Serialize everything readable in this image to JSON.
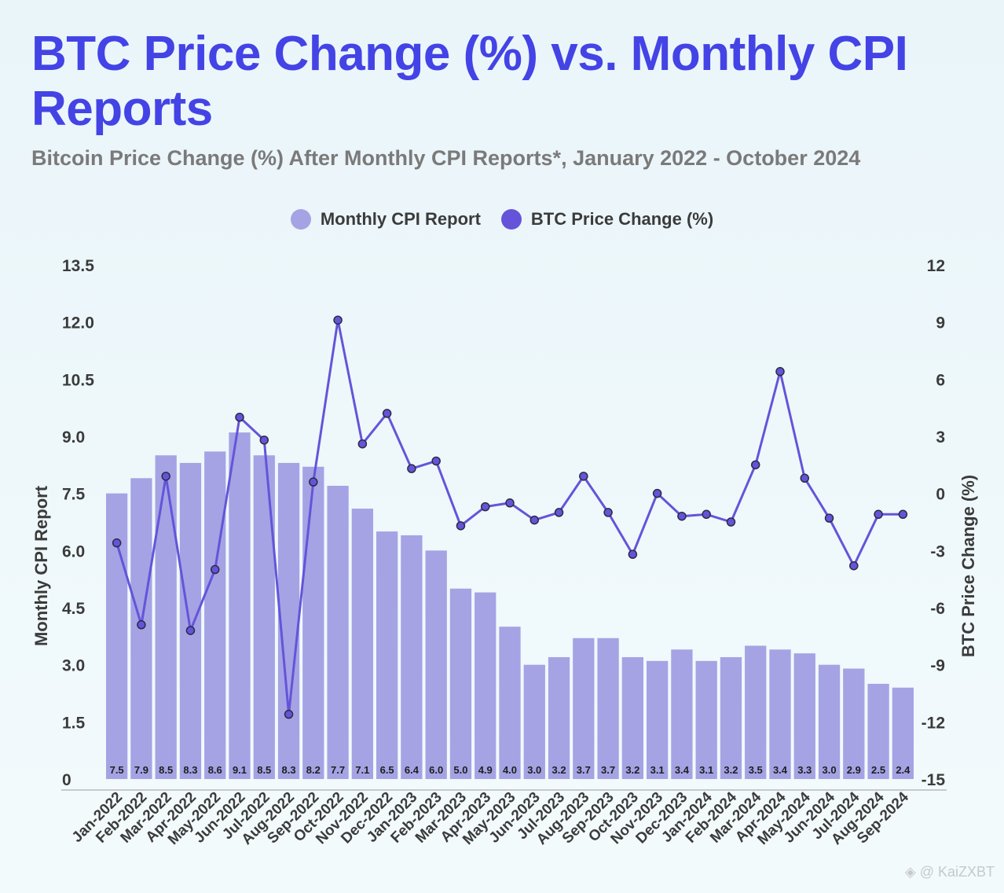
{
  "header": {
    "title": "BTC Price Change (%) vs. Monthly CPI Reports",
    "subtitle": "Bitcoin Price Change (%) After Monthly CPI Reports*, January 2022 - October 2024"
  },
  "colors": {
    "title": "#4343e6",
    "bar": "#a5a3e4",
    "line": "#6554d9",
    "point_stroke": "#2b2b44",
    "axis_text": "#3b3b3b"
  },
  "watermark": "@ KaiZXBT",
  "chart_data": {
    "type": "bar+line",
    "title": "BTC Price Change (%) vs. Monthly CPI Reports",
    "subtitle": "Bitcoin Price Change (%) After Monthly CPI Reports*, January 2022 - October 2024",
    "legend": {
      "position": "top-center",
      "entries": [
        "Monthly CPI Report",
        "BTC Price Change (%)"
      ]
    },
    "categories": [
      "Jan-2022",
      "Feb-2022",
      "Mar-2022",
      "Apr-2022",
      "May-2022",
      "Jun-2022",
      "Jul-2022",
      "Aug-2022",
      "Sep-2022",
      "Oct-2022",
      "Nov-2022",
      "Dec-2022",
      "Jan-2023",
      "Feb-2023",
      "Mar-2023",
      "Apr-2023",
      "May-2023",
      "Jun-2023",
      "Jul-2023",
      "Aug-2023",
      "Sep-2023",
      "Oct-2023",
      "Nov-2023",
      "Dec-2023",
      "Jan-2024",
      "Feb-2024",
      "Mar-2024",
      "Apr-2024",
      "May-2024",
      "Jun-2024",
      "Jul-2024",
      "Aug-2024",
      "Sep-2024"
    ],
    "series": [
      {
        "name": "Monthly CPI Report",
        "type": "bar",
        "axis": "left",
        "values": [
          7.5,
          7.9,
          8.5,
          8.3,
          8.6,
          9.1,
          8.5,
          8.3,
          8.2,
          7.7,
          7.1,
          6.5,
          6.4,
          6.0,
          5.0,
          4.9,
          4.0,
          3.0,
          3.2,
          3.7,
          3.7,
          3.2,
          3.1,
          3.4,
          3.1,
          3.2,
          3.5,
          3.4,
          3.3,
          3.0,
          2.9,
          2.5,
          2.4
        ],
        "data_labels": [
          "7.5",
          "7.9",
          "8.5",
          "8.3",
          "8.6",
          "9.1",
          "8.5",
          "8.3",
          "8.2",
          "7.7",
          "7.1",
          "6.5",
          "6.4",
          "6.0",
          "5.0",
          "4.9",
          "4.0",
          "3.0",
          "3.2",
          "3.7",
          "3.7",
          "3.2",
          "3.1",
          "3.4",
          "3.1",
          "3.2",
          "3.5",
          "3.4",
          "3.3",
          "3.0",
          "2.9",
          "2.5",
          "2.4"
        ]
      },
      {
        "name": "BTC Price Change (%)",
        "type": "line",
        "axis": "right",
        "values": [
          -2.6,
          -6.9,
          0.9,
          -7.2,
          -4.0,
          4.0,
          2.8,
          -11.6,
          0.6,
          9.1,
          2.6,
          4.2,
          1.3,
          1.7,
          -1.7,
          -0.7,
          -0.5,
          -1.4,
          -1.0,
          0.9,
          -1.0,
          -3.2,
          0.0,
          -1.2,
          -1.1,
          -1.5,
          1.5,
          6.4,
          0.8,
          -1.3,
          -3.8,
          -1.1,
          -1.1
        ]
      }
    ],
    "y_left": {
      "label": "Monthly CPI Report",
      "range": [
        0,
        13.5
      ],
      "ticks": [
        "0",
        "1.5",
        "3.0",
        "4.5",
        "6.0",
        "7.5",
        "9.0",
        "10.5",
        "12.0",
        "13.5"
      ]
    },
    "y_right": {
      "label": "BTC Price Change (%)",
      "range": [
        -15,
        12
      ],
      "ticks": [
        "-15",
        "-12",
        "-9",
        "-6",
        "-3",
        "0",
        "3",
        "6",
        "9",
        "12"
      ]
    },
    "xlabel": "",
    "grid": false
  }
}
